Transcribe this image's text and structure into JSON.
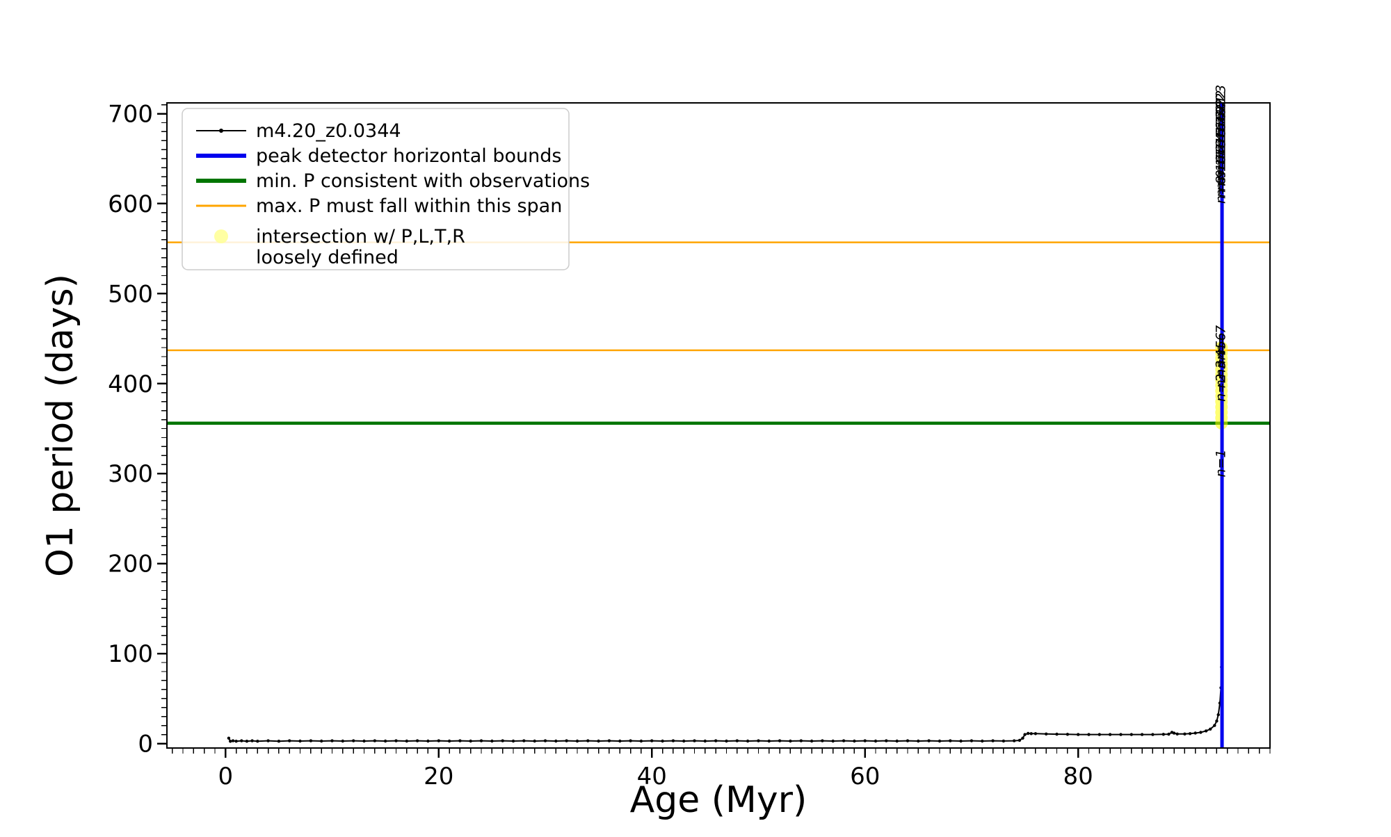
{
  "chart_data": {
    "type": "line",
    "title": "",
    "xlabel": "Age (Myr)",
    "ylabel": "O1 period (days)",
    "xlim": [
      -5.5,
      98
    ],
    "ylim": [
      -5,
      712
    ],
    "x_ticks": [
      0,
      20,
      40,
      60,
      80
    ],
    "y_ticks": [
      0,
      100,
      200,
      300,
      400,
      500,
      600,
      700
    ],
    "x_minor_step": 1,
    "y_minor_step": 10,
    "grid": false,
    "legend_position": "upper-left",
    "series": [
      {
        "name": "m4.20_z0.0344",
        "color": "#000000",
        "line_width": 2,
        "marker": true,
        "points": [
          [
            0.3,
            6
          ],
          [
            0.45,
            2.5
          ],
          [
            0.7,
            3
          ],
          [
            1,
            2.6
          ],
          [
            1.5,
            3
          ],
          [
            2,
            2.6
          ],
          [
            2.5,
            3
          ],
          [
            3,
            2.6
          ],
          [
            4,
            3
          ],
          [
            5,
            2.6
          ],
          [
            6,
            3
          ],
          [
            7,
            2.7
          ],
          [
            8,
            3
          ],
          [
            9,
            2.7
          ],
          [
            10,
            3
          ],
          [
            11,
            2.7
          ],
          [
            12,
            3
          ],
          [
            13,
            2.7
          ],
          [
            14,
            3
          ],
          [
            15,
            2.7
          ],
          [
            16,
            3
          ],
          [
            17,
            2.7
          ],
          [
            18,
            3
          ],
          [
            19,
            2.7
          ],
          [
            20,
            3
          ],
          [
            21,
            2.7
          ],
          [
            22,
            3
          ],
          [
            23,
            2.7
          ],
          [
            24,
            3
          ],
          [
            25,
            2.7
          ],
          [
            26,
            3
          ],
          [
            27,
            2.7
          ],
          [
            28,
            3
          ],
          [
            29,
            2.7
          ],
          [
            30,
            3
          ],
          [
            31,
            2.7
          ],
          [
            32,
            3
          ],
          [
            33,
            2.7
          ],
          [
            34,
            3
          ],
          [
            35,
            2.7
          ],
          [
            36,
            3
          ],
          [
            37,
            2.7
          ],
          [
            38,
            3
          ],
          [
            39,
            2.7
          ],
          [
            40,
            3
          ],
          [
            41,
            2.7
          ],
          [
            42,
            3
          ],
          [
            43,
            2.7
          ],
          [
            44,
            3
          ],
          [
            45,
            2.7
          ],
          [
            46,
            3
          ],
          [
            47,
            2.7
          ],
          [
            48,
            3
          ],
          [
            49,
            2.7
          ],
          [
            50,
            3
          ],
          [
            51,
            2.7
          ],
          [
            52,
            3
          ],
          [
            53,
            2.7
          ],
          [
            54,
            3
          ],
          [
            55,
            2.7
          ],
          [
            56,
            3
          ],
          [
            57,
            2.7
          ],
          [
            58,
            3
          ],
          [
            59,
            2.7
          ],
          [
            60,
            3
          ],
          [
            61,
            2.7
          ],
          [
            62,
            3
          ],
          [
            63,
            2.7
          ],
          [
            64,
            3
          ],
          [
            65,
            2.7
          ],
          [
            66,
            3
          ],
          [
            67,
            2.7
          ],
          [
            68,
            3
          ],
          [
            69,
            2.7
          ],
          [
            70,
            3
          ],
          [
            71,
            2.7
          ],
          [
            72,
            3
          ],
          [
            73,
            2.8
          ],
          [
            74,
            3
          ],
          [
            74.5,
            3.5
          ],
          [
            74.8,
            6
          ],
          [
            75,
            10
          ],
          [
            75.3,
            11.2
          ],
          [
            75.6,
            11
          ],
          [
            76,
            11
          ],
          [
            77,
            10.6
          ],
          [
            78,
            10.4
          ],
          [
            79,
            10.2
          ],
          [
            80,
            10
          ],
          [
            81,
            10
          ],
          [
            82,
            10
          ],
          [
            83,
            10
          ],
          [
            84,
            10
          ],
          [
            85,
            10
          ],
          [
            86,
            10
          ],
          [
            87,
            10
          ],
          [
            88,
            10.2
          ],
          [
            88.5,
            10.4
          ],
          [
            88.8,
            12.5
          ],
          [
            89,
            11.5
          ],
          [
            89.3,
            10.6
          ],
          [
            90,
            10.6
          ],
          [
            90.5,
            11
          ],
          [
            91,
            11.6
          ],
          [
            91.5,
            12.4
          ],
          [
            92,
            14
          ],
          [
            92.4,
            16
          ],
          [
            92.8,
            20
          ],
          [
            93,
            25
          ],
          [
            93.15,
            32
          ],
          [
            93.3,
            45
          ],
          [
            93.4,
            62
          ],
          [
            93.45,
            85
          ],
          [
            93.5,
            120
          ]
        ]
      }
    ],
    "vlines": [
      {
        "x": 93.5,
        "color": "#0000ee",
        "width": 5,
        "label": "peak detector horizontal bounds"
      }
    ],
    "hlines": [
      {
        "y": 356,
        "color": "#007500",
        "width": 4.5,
        "label": "min. P consistent with observations"
      },
      {
        "y": 437,
        "color": "#ffa500",
        "width": 2.5,
        "label": "max. P must fall within this span"
      },
      {
        "y": 557,
        "color": "#ffa500",
        "width": 2.5,
        "label": "max. P must fall within this span"
      }
    ],
    "scatter_band": {
      "label_line1": "intersection w/ P,L,T,R",
      "label_line2": "loosely defined",
      "color": "#ffff00",
      "opacity": 0.55,
      "x": 93.45,
      "y_values": [
        356,
        362,
        368,
        374,
        380,
        386,
        392,
        398,
        404,
        410,
        416,
        422,
        428,
        434,
        440
      ]
    },
    "annotations": [
      {
        "x": 93.8,
        "y": 296,
        "text": "n=1"
      },
      {
        "x": 93.8,
        "y": 380,
        "text": "n=2"
      },
      {
        "x": 93.8,
        "y": 395,
        "text": "n=3"
      },
      {
        "x": 93.8,
        "y": 407,
        "text": "n=4"
      },
      {
        "x": 93.8,
        "y": 417,
        "text": "n=5"
      },
      {
        "x": 93.8,
        "y": 426,
        "text": "n=6"
      },
      {
        "x": 93.8,
        "y": 434,
        "text": "n=7"
      },
      {
        "x": 93.8,
        "y": 600,
        "text": "n=8"
      },
      {
        "x": 93.8,
        "y": 607,
        "text": "n=9"
      },
      {
        "x": 93.8,
        "y": 614,
        "text": "n=10"
      },
      {
        "x": 93.8,
        "y": 620,
        "text": "n=11"
      },
      {
        "x": 93.8,
        "y": 626,
        "text": "n=12"
      },
      {
        "x": 93.8,
        "y": 632,
        "text": "n=13"
      },
      {
        "x": 93.8,
        "y": 638,
        "text": "n=14"
      },
      {
        "x": 93.8,
        "y": 644,
        "text": "n=15"
      },
      {
        "x": 93.8,
        "y": 650,
        "text": "n=16"
      },
      {
        "x": 93.8,
        "y": 656,
        "text": "n=17"
      },
      {
        "x": 93.8,
        "y": 662,
        "text": "n=18"
      },
      {
        "x": 93.8,
        "y": 668,
        "text": "n=19"
      },
      {
        "x": 93.8,
        "y": 674,
        "text": "n=20"
      },
      {
        "x": 93.8,
        "y": 680,
        "text": "n=21"
      },
      {
        "x": 93.8,
        "y": 686,
        "text": "n=22"
      },
      {
        "x": 93.8,
        "y": 692,
        "text": "n=23"
      }
    ],
    "legend": {
      "entries": [
        {
          "swatch": "line-marker",
          "color": "#000000",
          "width": 2,
          "label": "m4.20_z0.0344"
        },
        {
          "swatch": "line",
          "color": "#0000ee",
          "width": 6,
          "label": "peak detector horizontal bounds"
        },
        {
          "swatch": "line",
          "color": "#007500",
          "width": 6,
          "label": "min. P consistent with observations"
        },
        {
          "swatch": "line",
          "color": "#ffa500",
          "width": 3,
          "label": "max. P must fall within this span"
        },
        {
          "swatch": "marker",
          "color": "#ffff99",
          "width": 0,
          "label": "intersection w/ P,L,T,R",
          "label2": "loosely defined"
        }
      ]
    }
  },
  "colors": {
    "background": "#ffffff",
    "axis": "#000000",
    "series": "#000000",
    "peak_bounds": "#0000ee",
    "min_p": "#007500",
    "max_p": "#ffa500",
    "intersection": "#ffff00"
  }
}
